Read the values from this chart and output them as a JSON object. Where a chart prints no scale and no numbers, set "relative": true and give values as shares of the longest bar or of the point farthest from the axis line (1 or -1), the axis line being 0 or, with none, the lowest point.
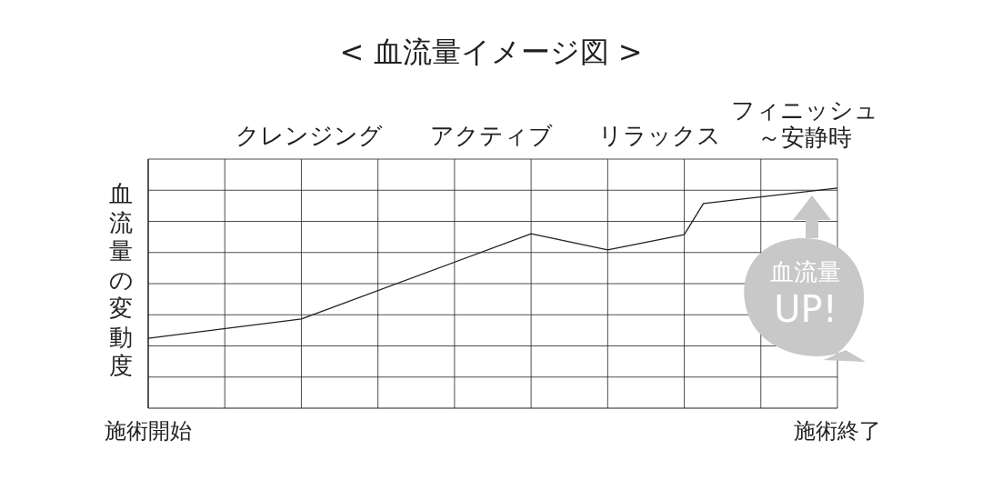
{
  "chart_data": {
    "type": "line",
    "title": "< 血流量イメージ図 >",
    "ylabel": "血流量の変動度",
    "relative": true,
    "categories": [
      "施術開始",
      null,
      null,
      null,
      null,
      null,
      null,
      null,
      null,
      null,
      null,
      null,
      null,
      null,
      null,
      null,
      null,
      null,
      null,
      null,
      null,
      null,
      null,
      null,
      null,
      null,
      null,
      null,
      null,
      null,
      null,
      null,
      null,
      null,
      null,
      null,
      "施術終了"
    ],
    "values": [
      0.318,
      null,
      null,
      null,
      null,
      null,
      null,
      null,
      0.405,
      null,
      null,
      null,
      null,
      null,
      null,
      null,
      null,
      null,
      null,
      null,
      0.793,
      null,
      null,
      null,
      0.719,
      null,
      null,
      null,
      0.789,
      0.93,
      null,
      null,
      null,
      null,
      null,
      null,
      1
    ],
    "color": "#231f20",
    "grid": true,
    "marker": "none",
    "line_style": "solid",
    "annotations": [
      "クレンジング",
      "アクティブ",
      "リラックス",
      "フィニッシュ",
      "～安静時",
      "血流量 UP!"
    ]
  }
}
